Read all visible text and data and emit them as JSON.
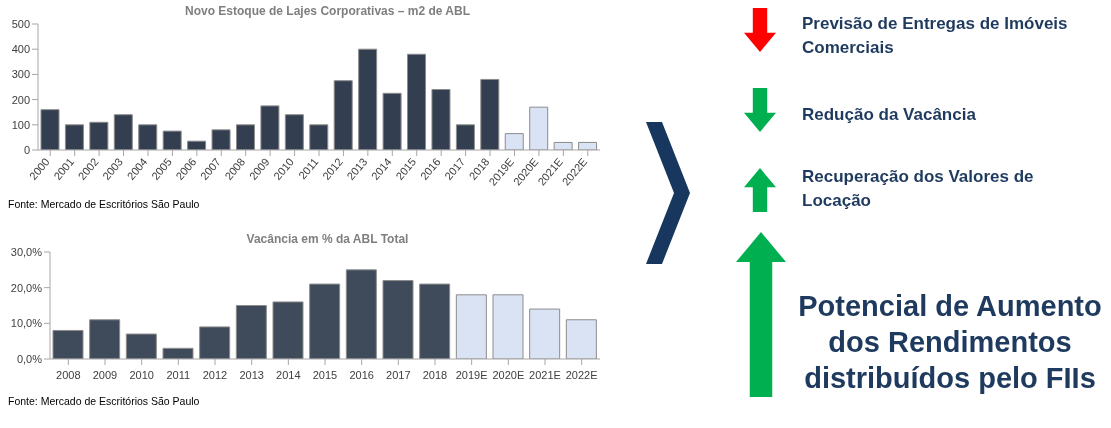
{
  "chart_data": [
    {
      "type": "bar",
      "title": "Novo Estoque de Lajes Corporativas – m2 de ABL",
      "categories": [
        "2000",
        "2001",
        "2002",
        "2003",
        "2004",
        "2005",
        "2006",
        "2007",
        "2008",
        "2009",
        "2010",
        "2011",
        "2012",
        "2013",
        "2014",
        "2015",
        "2016",
        "2017",
        "2018",
        "2019E",
        "2020E",
        "2021E",
        "2022E"
      ],
      "values": [
        160,
        100,
        110,
        140,
        100,
        75,
        35,
        80,
        100,
        175,
        140,
        100,
        275,
        400,
        225,
        380,
        240,
        100,
        280,
        65,
        170,
        30,
        30
      ],
      "colors": [
        "#333f50",
        "#333f50",
        "#333f50",
        "#333f50",
        "#333f50",
        "#333f50",
        "#333f50",
        "#333f50",
        "#333f50",
        "#333f50",
        "#333f50",
        "#333f50",
        "#333f50",
        "#333f50",
        "#333f50",
        "#333f50",
        "#333f50",
        "#333f50",
        "#333f50",
        "#dae3f3",
        "#dae3f3",
        "#dae3f3",
        "#dae3f3"
      ],
      "ylim": [
        0,
        500
      ],
      "yticks": [
        0,
        100,
        200,
        300,
        400,
        500
      ],
      "annotations": [
        "Fonte: Mercado de Escritórios São Paulo"
      ]
    },
    {
      "type": "bar",
      "title": "Vacância em % da ABL Total",
      "categories": [
        "2008",
        "2009",
        "2010",
        "2011",
        "2012",
        "2013",
        "2014",
        "2015",
        "2016",
        "2017",
        "2018",
        "2019E",
        "2020E",
        "2021E",
        "2022E"
      ],
      "values": [
        8,
        11,
        7,
        3,
        9,
        15,
        16,
        21,
        25,
        22,
        21,
        18,
        18,
        14,
        11
      ],
      "colors": [
        "#3f4b5b",
        "#3f4b5b",
        "#3f4b5b",
        "#3f4b5b",
        "#3f4b5b",
        "#3f4b5b",
        "#3f4b5b",
        "#3f4b5b",
        "#3f4b5b",
        "#3f4b5b",
        "#3f4b5b",
        "#dae3f3",
        "#dae3f3",
        "#dae3f3",
        "#dae3f3"
      ],
      "ylim": [
        0,
        30
      ],
      "yticks": [
        {
          "value": 0,
          "label": "0,0%"
        },
        {
          "value": 10,
          "label": "10,0%"
        },
        {
          "value": 20,
          "label": "20,0%"
        },
        {
          "value": 30,
          "label": "30,0%"
        }
      ],
      "annotations": [
        "Fonte: Mercado de Escritórios São Paulo"
      ]
    },
    {
      "type": "other",
      "annotations": [
        "Previsão de Entregas de Imóveis Comerciais",
        "Redução da Vacância",
        "Recuperação dos Valores de Locação",
        "Potencial de Aumento dos Rendimentos distribuídos pelo FIIs"
      ]
    }
  ]
}
